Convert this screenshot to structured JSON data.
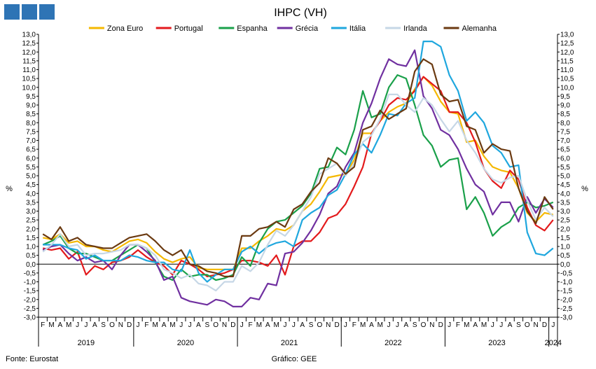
{
  "title": "IHPC (VH)",
  "y_unit": "%",
  "source": "Fonte: Eurostat",
  "credit": "Gráfico: GEE",
  "colors": {
    "brand": "#2e74b5"
  },
  "chart_data": {
    "type": "line",
    "title": "IHPC (VH)",
    "ylabel": "%",
    "ylim": [
      -3.0,
      13.0
    ],
    "ytick_step": 0.5,
    "grid": false,
    "legend_position": "top",
    "x": [
      "2019-02",
      "2019-03",
      "2019-04",
      "2019-05",
      "2019-06",
      "2019-07",
      "2019-08",
      "2019-09",
      "2019-10",
      "2019-11",
      "2019-12",
      "2020-01",
      "2020-02",
      "2020-03",
      "2020-04",
      "2020-05",
      "2020-06",
      "2020-07",
      "2020-08",
      "2020-09",
      "2020-10",
      "2020-11",
      "2020-12",
      "2021-01",
      "2021-02",
      "2021-03",
      "2021-04",
      "2021-05",
      "2021-06",
      "2021-07",
      "2021-08",
      "2021-09",
      "2021-10",
      "2021-11",
      "2021-12",
      "2022-01",
      "2022-02",
      "2022-03",
      "2022-04",
      "2022-05",
      "2022-06",
      "2022-07",
      "2022-08",
      "2022-09",
      "2022-10",
      "2022-11",
      "2022-12",
      "2023-01",
      "2023-02",
      "2023-03",
      "2023-04",
      "2023-05",
      "2023-06",
      "2023-07",
      "2023-08",
      "2023-09",
      "2023-10",
      "2023-11",
      "2023-12",
      "2024-01"
    ],
    "month_labels": [
      "F",
      "M",
      "A",
      "M",
      "J",
      "J",
      "A",
      "S",
      "O",
      "N",
      "D",
      "J",
      "F",
      "M",
      "A",
      "M",
      "J",
      "J",
      "A",
      "S",
      "O",
      "N",
      "D",
      "J",
      "F",
      "M",
      "A",
      "M",
      "J",
      "J",
      "A",
      "S",
      "O",
      "N",
      "D",
      "J",
      "F",
      "M",
      "A",
      "M",
      "J",
      "J",
      "A",
      "S",
      "O",
      "N",
      "D",
      "J",
      "F",
      "M",
      "A",
      "M",
      "J",
      "J",
      "A",
      "S",
      "O",
      "N",
      "D",
      "J"
    ],
    "years": [
      {
        "label": "2019",
        "start": 0,
        "end": 10
      },
      {
        "label": "2020",
        "start": 11,
        "end": 22
      },
      {
        "label": "2021",
        "start": 23,
        "end": 34
      },
      {
        "label": "2022",
        "start": 35,
        "end": 46
      },
      {
        "label": "2023",
        "start": 47,
        "end": 58
      },
      {
        "label": "2024",
        "start": 59,
        "end": 59
      }
    ],
    "series": [
      {
        "name": "Zona Euro",
        "color": "#f5b800",
        "values": [
          1.5,
          1.4,
          1.7,
          1.2,
          1.3,
          1.0,
          1.0,
          0.8,
          0.7,
          1.0,
          1.3,
          1.4,
          1.2,
          0.7,
          0.3,
          0.1,
          0.3,
          0.4,
          -0.2,
          -0.3,
          -0.3,
          -0.3,
          -0.3,
          0.9,
          0.9,
          1.3,
          1.6,
          2.0,
          1.9,
          2.2,
          3.0,
          3.4,
          4.1,
          4.9,
          5.0,
          5.1,
          5.9,
          7.4,
          7.4,
          8.1,
          8.6,
          8.9,
          9.1,
          9.9,
          10.6,
          10.1,
          9.2,
          8.6,
          8.5,
          6.9,
          7.0,
          6.1,
          5.5,
          5.3,
          5.2,
          4.3,
          2.9,
          2.4,
          2.9,
          2.8
        ]
      },
      {
        "name": "Portugal",
        "color": "#e31a1c",
        "values": [
          0.9,
          0.8,
          0.9,
          0.3,
          0.7,
          -0.6,
          -0.1,
          -0.3,
          0.1,
          0.2,
          0.4,
          0.8,
          0.4,
          0.1,
          -0.1,
          -0.6,
          0.2,
          0.0,
          -0.3,
          -0.7,
          -0.6,
          -0.5,
          -0.3,
          0.2,
          0.2,
          0.1,
          -0.1,
          0.5,
          -0.6,
          1.0,
          1.3,
          1.3,
          1.8,
          2.6,
          2.8,
          3.4,
          4.4,
          5.5,
          7.4,
          8.1,
          9.0,
          9.4,
          9.3,
          9.8,
          10.6,
          10.2,
          9.8,
          8.6,
          8.6,
          8.0,
          6.9,
          5.4,
          4.7,
          4.3,
          5.3,
          4.8,
          3.2,
          2.2,
          1.9,
          2.5
        ]
      },
      {
        "name": "Espanha",
        "color": "#1aa04a",
        "values": [
          1.1,
          1.3,
          1.6,
          0.9,
          0.6,
          0.6,
          0.4,
          0.2,
          0.2,
          0.5,
          0.8,
          1.1,
          0.9,
          0.1,
          -0.7,
          -0.9,
          -0.3,
          -0.7,
          -0.6,
          -0.6,
          -0.9,
          -0.8,
          -0.6,
          0.4,
          -0.1,
          1.2,
          2.0,
          2.4,
          2.5,
          2.9,
          3.3,
          4.0,
          5.4,
          5.5,
          6.6,
          6.2,
          7.6,
          9.8,
          8.3,
          8.5,
          10.0,
          10.7,
          10.5,
          9.0,
          7.3,
          6.7,
          5.5,
          5.9,
          6.0,
          3.1,
          3.8,
          2.9,
          1.6,
          2.1,
          2.4,
          3.2,
          3.5,
          3.2,
          3.3,
          3.5
        ]
      },
      {
        "name": "Grécia",
        "color": "#7030a0",
        "values": [
          0.8,
          1.0,
          1.1,
          0.6,
          0.2,
          0.4,
          0.1,
          0.2,
          -0.3,
          0.5,
          1.1,
          1.1,
          0.7,
          0.2,
          -0.9,
          -0.7,
          -1.9,
          -2.1,
          -2.2,
          -2.3,
          -2.0,
          -2.1,
          -2.4,
          -2.4,
          -1.9,
          -2.0,
          -1.1,
          -1.2,
          0.6,
          0.7,
          1.2,
          1.9,
          2.8,
          4.0,
          4.4,
          5.5,
          6.3,
          8.0,
          9.1,
          10.5,
          11.6,
          11.3,
          11.2,
          12.1,
          9.5,
          8.8,
          7.6,
          7.3,
          6.5,
          5.4,
          4.5,
          4.1,
          2.8,
          3.5,
          3.5,
          2.4,
          3.8,
          2.9,
          3.7,
          3.2
        ]
      },
      {
        "name": "Itália",
        "color": "#1fa7de",
        "values": [
          1.1,
          1.1,
          1.1,
          0.9,
          0.8,
          0.3,
          0.5,
          0.2,
          0.2,
          0.2,
          0.5,
          0.4,
          0.2,
          0.1,
          0.1,
          -0.3,
          -0.4,
          0.8,
          -0.5,
          -1.0,
          -0.6,
          -0.3,
          -0.3,
          0.7,
          1.0,
          0.6,
          1.0,
          1.2,
          1.3,
          1.0,
          2.5,
          2.9,
          3.2,
          3.9,
          4.2,
          5.1,
          6.2,
          6.8,
          6.3,
          7.3,
          8.5,
          8.4,
          9.1,
          9.4,
          12.6,
          12.6,
          12.3,
          10.7,
          9.8,
          8.1,
          8.6,
          8.0,
          6.7,
          6.3,
          5.5,
          5.6,
          1.8,
          0.6,
          0.5,
          0.9
        ]
      },
      {
        "name": "Irlanda",
        "color": "#c6d7e6",
        "values": [
          0.7,
          1.1,
          1.7,
          1.0,
          1.1,
          0.5,
          0.6,
          0.6,
          0.7,
          0.8,
          1.1,
          1.1,
          0.9,
          0.5,
          -0.3,
          -0.5,
          -0.8,
          -0.6,
          -1.1,
          -1.2,
          -1.5,
          -1.0,
          -1.0,
          -0.1,
          -0.4,
          0.1,
          1.1,
          1.9,
          1.6,
          2.2,
          3.0,
          3.8,
          5.1,
          5.4,
          5.7,
          5.0,
          5.7,
          6.9,
          7.3,
          8.2,
          9.6,
          9.6,
          9.0,
          8.6,
          9.4,
          9.0,
          8.2,
          7.5,
          8.1,
          7.0,
          6.3,
          5.4,
          4.8,
          4.6,
          4.9,
          5.0,
          3.6,
          2.5,
          3.2,
          2.7
        ]
      },
      {
        "name": "Alemanha",
        "color": "#6b3a11",
        "values": [
          1.7,
          1.4,
          2.1,
          1.3,
          1.5,
          1.1,
          1.0,
          0.9,
          0.9,
          1.2,
          1.5,
          1.6,
          1.7,
          1.3,
          0.8,
          0.5,
          0.8,
          0.0,
          -0.1,
          -0.4,
          -0.5,
          -0.7,
          -0.7,
          1.6,
          1.6,
          2.0,
          2.1,
          2.4,
          2.1,
          3.1,
          3.4,
          4.1,
          4.6,
          6.0,
          5.7,
          5.1,
          5.5,
          7.6,
          7.8,
          8.7,
          8.2,
          8.5,
          8.8,
          10.9,
          11.6,
          11.3,
          9.6,
          9.2,
          9.3,
          7.8,
          7.6,
          6.3,
          6.8,
          6.5,
          6.4,
          4.3,
          3.0,
          2.3,
          3.8,
          3.1
        ]
      }
    ]
  }
}
